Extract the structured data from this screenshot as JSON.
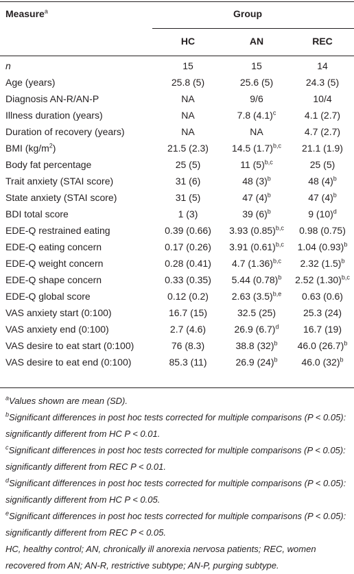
{
  "table": {
    "header": {
      "measure_label": "Measure",
      "measure_footnote": "a",
      "group_label": "Group",
      "columns": [
        "HC",
        "AN",
        "REC"
      ]
    },
    "rows": [
      {
        "measure": {
          "text": "n",
          "italic": true
        },
        "hc": {
          "text": "15",
          "sup": ""
        },
        "an": {
          "text": "15",
          "sup": ""
        },
        "rec": {
          "text": "14",
          "sup": ""
        }
      },
      {
        "measure": {
          "text": "Age (years)"
        },
        "hc": {
          "text": "25.8 (5)",
          "sup": ""
        },
        "an": {
          "text": "25.6 (5)",
          "sup": ""
        },
        "rec": {
          "text": "24.3 (5)",
          "sup": ""
        }
      },
      {
        "measure": {
          "text": "Diagnosis AN-R/AN-P"
        },
        "hc": {
          "text": "NA",
          "sup": ""
        },
        "an": {
          "text": "9/6",
          "sup": ""
        },
        "rec": {
          "text": "10/4",
          "sup": ""
        }
      },
      {
        "measure": {
          "text": "Illness duration (years)"
        },
        "hc": {
          "text": "NA",
          "sup": ""
        },
        "an": {
          "text": "7.8 (4.1)",
          "sup": "c"
        },
        "rec": {
          "text": "4.1 (2.7)",
          "sup": ""
        }
      },
      {
        "measure": {
          "text": "Duration of recovery (years)"
        },
        "hc": {
          "text": "NA",
          "sup": ""
        },
        "an": {
          "text": "NA",
          "sup": ""
        },
        "rec": {
          "text": "4.7 (2.7)",
          "sup": ""
        }
      },
      {
        "measure": {
          "text": "BMI (kg/m",
          "sup": "2",
          "after": ")"
        },
        "hc": {
          "text": "21.5 (2.3)",
          "sup": ""
        },
        "an": {
          "text": "14.5 (1.7)",
          "sup": "b,c"
        },
        "rec": {
          "text": "21.1 (1.9)",
          "sup": ""
        }
      },
      {
        "measure": {
          "text": "Body fat percentage"
        },
        "hc": {
          "text": "25 (5)",
          "sup": ""
        },
        "an": {
          "text": "11 (5)",
          "sup": "b,c"
        },
        "rec": {
          "text": "25 (5)",
          "sup": ""
        }
      },
      {
        "measure": {
          "text": "Trait anxiety (STAI score)"
        },
        "hc": {
          "text": "31 (6)",
          "sup": ""
        },
        "an": {
          "text": "48 (3)",
          "sup": "b"
        },
        "rec": {
          "text": "48 (4)",
          "sup": "b"
        }
      },
      {
        "measure": {
          "text": "State anxiety (STAI score)"
        },
        "hc": {
          "text": "31 (5)",
          "sup": ""
        },
        "an": {
          "text": "47 (4)",
          "sup": "b"
        },
        "rec": {
          "text": "47 (4)",
          "sup": "b"
        }
      },
      {
        "measure": {
          "text": "BDI total score"
        },
        "hc": {
          "text": "1 (3)",
          "sup": ""
        },
        "an": {
          "text": "39 (6)",
          "sup": "b"
        },
        "rec": {
          "text": "9 (10)",
          "sup": "d"
        }
      },
      {
        "measure": {
          "text": "EDE-Q restrained eating"
        },
        "hc": {
          "text": "0.39 (0.66)",
          "sup": ""
        },
        "an": {
          "text": "3.93 (0.85)",
          "sup": "b,c"
        },
        "rec": {
          "text": "0.98 (0.75)",
          "sup": ""
        }
      },
      {
        "measure": {
          "text": "EDE-Q eating concern"
        },
        "hc": {
          "text": "0.17 (0.26)",
          "sup": ""
        },
        "an": {
          "text": "3.91 (0.61)",
          "sup": "b,c"
        },
        "rec": {
          "text": "1.04 (0.93)",
          "sup": "b"
        }
      },
      {
        "measure": {
          "text": "EDE-Q weight concern"
        },
        "hc": {
          "text": "0.28 (0.41)",
          "sup": ""
        },
        "an": {
          "text": "4.7 (1.36)",
          "sup": "b,c"
        },
        "rec": {
          "text": "2.32 (1.5)",
          "sup": "b"
        }
      },
      {
        "measure": {
          "text": "EDE-Q shape concern"
        },
        "hc": {
          "text": "0.33 (0.35)",
          "sup": ""
        },
        "an": {
          "text": "5.44 (0.78)",
          "sup": "b"
        },
        "rec": {
          "text": "2.52 (1.30)",
          "sup": "b,c"
        }
      },
      {
        "measure": {
          "text": "EDE-Q global score"
        },
        "hc": {
          "text": "0.12 (0.2)",
          "sup": ""
        },
        "an": {
          "text": "2.63 (3.5)",
          "sup": "b,e"
        },
        "rec": {
          "text": "0.63 (0.6)",
          "sup": ""
        }
      },
      {
        "measure": {
          "text": "VAS anxiety start (0:100)"
        },
        "hc": {
          "text": "16.7 (15)",
          "sup": ""
        },
        "an": {
          "text": "32.5 (25)",
          "sup": ""
        },
        "rec": {
          "text": "25.3 (24)",
          "sup": ""
        }
      },
      {
        "measure": {
          "text": "VAS anxiety end (0:100)"
        },
        "hc": {
          "text": "2.7 (4.6)",
          "sup": ""
        },
        "an": {
          "text": "26.9 (6.7)",
          "sup": "d"
        },
        "rec": {
          "text": "16.7 (19)",
          "sup": ""
        }
      },
      {
        "measure": {
          "text": "VAS desire to eat start (0:100)"
        },
        "hc": {
          "text": "76 (8.3)",
          "sup": ""
        },
        "an": {
          "text": "38.8 (32)",
          "sup": "b"
        },
        "rec": {
          "text": "46.0 (26.7)",
          "sup": "b"
        }
      },
      {
        "measure": {
          "text": "VAS desire to eat end (0:100)"
        },
        "hc": {
          "text": "85.3 (11)",
          "sup": ""
        },
        "an": {
          "text": "26.9 (24)",
          "sup": "b"
        },
        "rec": {
          "text": "46.0 (32)",
          "sup": "b"
        }
      }
    ]
  },
  "footnotes": [
    {
      "mark": "a",
      "text": "Values shown are mean (SD)."
    },
    {
      "mark": "b",
      "text": "Significant differences in post hoc tests corrected for multiple comparisons (P < 0.05): significantly different from HC P < 0.01."
    },
    {
      "mark": "c",
      "text": "Significant differences in post hoc tests corrected for multiple comparisons (P < 0.05): significantly different from REC P < 0.01."
    },
    {
      "mark": "d",
      "text": "Significant differences in post hoc tests corrected for multiple comparisons (P < 0.05): significantly different from HC P < 0.05."
    },
    {
      "mark": "e",
      "text": "Significant differences in post hoc tests corrected for multiple comparisons (P < 0.05): significantly different from REC P < 0.05."
    },
    {
      "mark": "",
      "text": "HC, healthy control; AN, chronically ill anorexia nervosa patients; REC, women recovered from AN; AN-R, restrictive subtype; AN-P, purging subtype."
    }
  ]
}
